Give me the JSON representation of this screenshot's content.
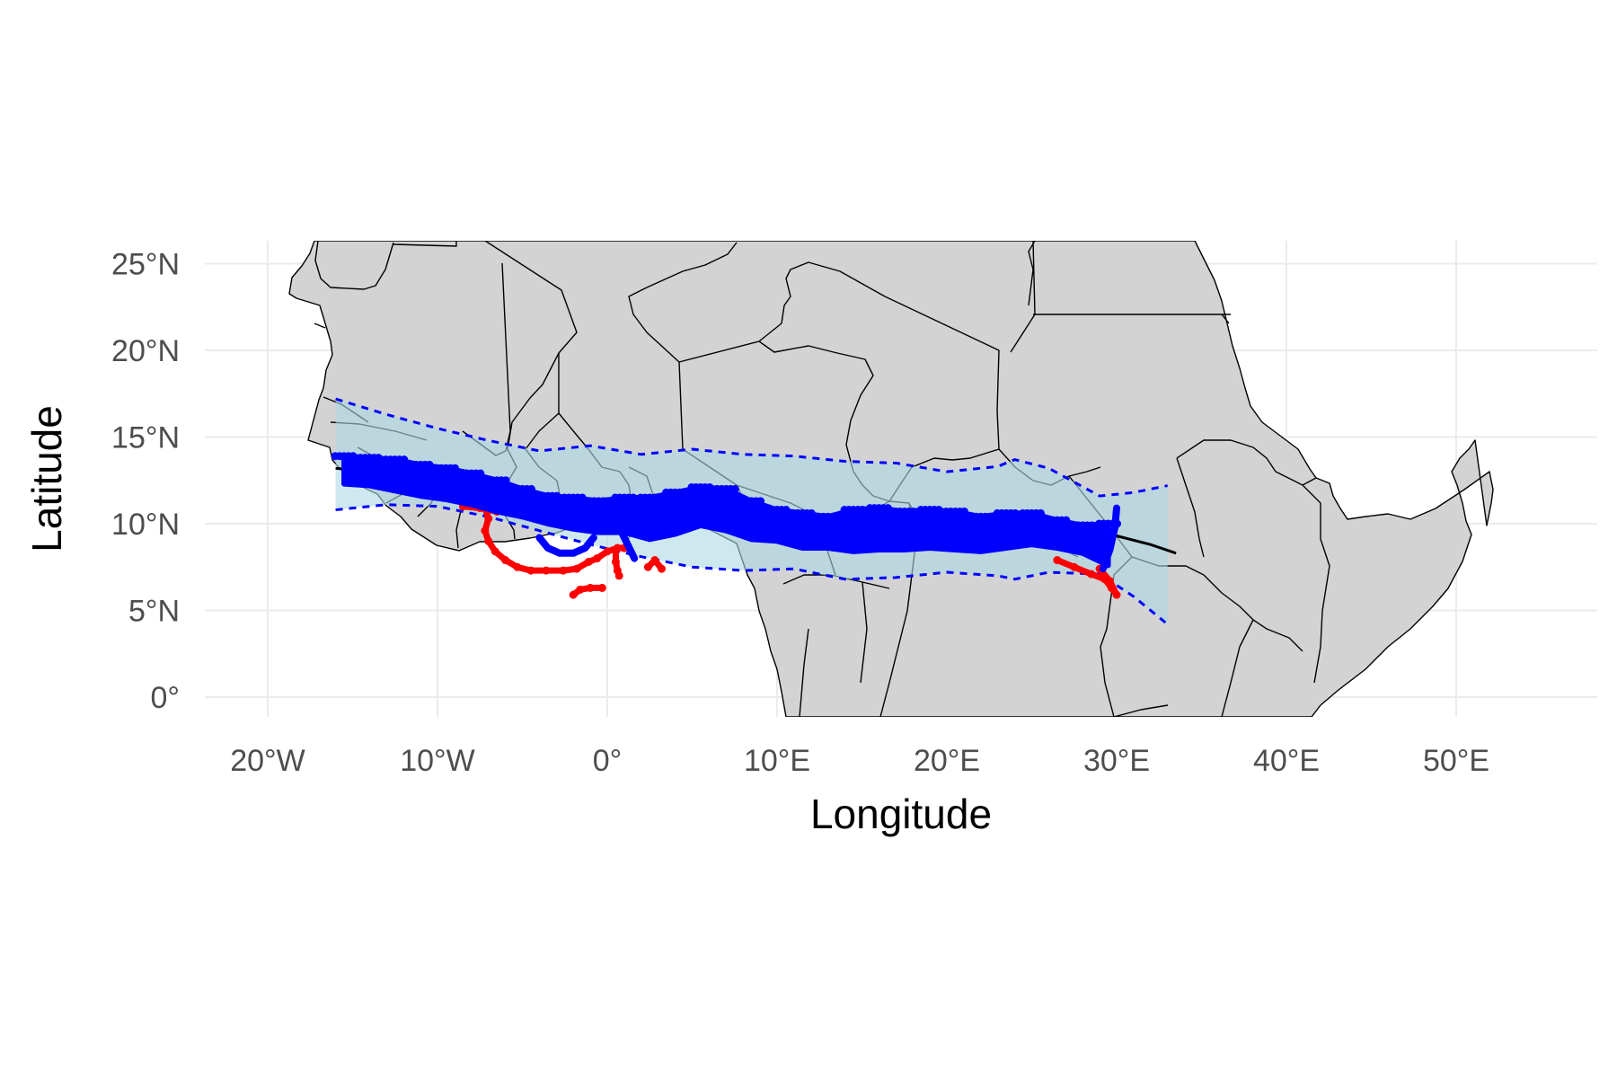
{
  "chart_data": {
    "type": "map",
    "xlabel": "Longitude",
    "ylabel": "Latitude",
    "xlim": [
      -24,
      58
    ],
    "ylim": [
      -1.3,
      26.2
    ],
    "x_ticks": [
      {
        "value": -20,
        "label": "20°W"
      },
      {
        "value": -10,
        "label": "10°W"
      },
      {
        "value": 0,
        "label": "0°"
      },
      {
        "value": 10,
        "label": "10°E"
      },
      {
        "value": 20,
        "label": "20°E"
      },
      {
        "value": 30,
        "label": "30°E"
      },
      {
        "value": 40,
        "label": "40°E"
      },
      {
        "value": 50,
        "label": "50°E"
      }
    ],
    "y_ticks": [
      {
        "value": 0,
        "label": "0°"
      },
      {
        "value": 5,
        "label": "5°N"
      },
      {
        "value": 10,
        "label": "10°N"
      },
      {
        "value": 15,
        "label": "15°N"
      },
      {
        "value": 20,
        "label": "20°N"
      },
      {
        "value": 25,
        "label": "25°N"
      }
    ],
    "grid": true,
    "colors": {
      "land": "#d3d3d3",
      "border": "#000000",
      "band_fill": "#add8e6",
      "band_edge": "#0000ff",
      "points_primary": "#0000ff",
      "points_secondary": "#ff0000",
      "mean_line": "#000000",
      "grid": "#ebebeb"
    },
    "band": {
      "lon": [
        -16,
        -13,
        -10,
        -7,
        -4,
        -1,
        2,
        5,
        8,
        11,
        14,
        17,
        20,
        23,
        24,
        26,
        29,
        31,
        33
      ],
      "upper": [
        17.2,
        16.3,
        15.5,
        14.8,
        14.2,
        14.5,
        14.0,
        14.3,
        14.0,
        13.9,
        13.6,
        13.5,
        13.0,
        13.3,
        13.7,
        13.2,
        11.6,
        11.8,
        12.2
      ],
      "lower": [
        10.8,
        11.1,
        11.0,
        10.4,
        9.6,
        8.8,
        8.1,
        7.5,
        7.3,
        7.4,
        6.8,
        6.9,
        7.2,
        7.0,
        6.8,
        7.2,
        7.1,
        5.8,
        4.2
      ]
    },
    "mean_line": {
      "lon": [
        -16,
        -12,
        -8,
        -4,
        0,
        4,
        8,
        12,
        16,
        20,
        24,
        26,
        28,
        30,
        32,
        33.5
      ],
      "lat": [
        13.2,
        12.8,
        12.1,
        11.3,
        10.8,
        10.6,
        10.3,
        9.9,
        9.6,
        9.6,
        9.6,
        9.9,
        9.6,
        9.3,
        8.8,
        8.3
      ]
    },
    "primary_points": {
      "lon": [
        -15.5,
        -14,
        -12.5,
        -11,
        -9.5,
        -8,
        -6.5,
        -5,
        -3.5,
        -2,
        -0.5,
        1,
        2.5,
        4,
        5.5,
        7,
        8.5,
        10,
        11.5,
        13,
        14.5,
        16,
        17.5,
        19,
        20.5,
        22,
        23.5,
        25,
        26.5,
        28,
        29.5
      ],
      "lat": [
        13.1,
        13.0,
        12.8,
        12.5,
        12.3,
        12.0,
        11.6,
        11.2,
        10.8,
        10.6,
        10.4,
        10.5,
        10.3,
        10.6,
        11.0,
        10.8,
        10.2,
        9.9,
        9.6,
        9.5,
        9.6,
        9.7,
        9.6,
        9.7,
        9.6,
        9.4,
        9.6,
        9.7,
        9.4,
        9.1,
        8.8
      ],
      "spread": [
        0.8,
        0.8,
        0.9,
        0.9,
        0.9,
        0.9,
        0.9,
        0.8,
        0.8,
        0.9,
        0.9,
        1.0,
        1.2,
        1.2,
        1.1,
        1.2,
        1.1,
        0.9,
        1.0,
        0.9,
        1.2,
        1.2,
        1.1,
        1.1,
        1.1,
        1.0,
        1.0,
        0.9,
        0.8,
        0.8,
        1.2
      ]
    },
    "secondary_tracks": [
      {
        "lon": [
          -7.2,
          -7.0,
          -7.2,
          -7.0,
          -6.6,
          -6.0,
          -5.3,
          -4.5,
          -3.6,
          -2.6,
          -1.8,
          -1.1,
          -0.6,
          0.0,
          0.6,
          1.0
        ],
        "lat": [
          10.9,
          10.3,
          9.6,
          9.0,
          8.4,
          7.9,
          7.5,
          7.3,
          7.3,
          7.3,
          7.4,
          7.8,
          8.0,
          8.4,
          8.6,
          8.6
        ]
      },
      {
        "lon": [
          0.5,
          0.5,
          0.6,
          0.7
        ],
        "lat": [
          8.5,
          7.8,
          7.3,
          7.0
        ]
      },
      {
        "lon": [
          -2.0,
          -1.6,
          -1.0,
          -0.3
        ],
        "lat": [
          5.9,
          6.2,
          6.3,
          6.3
        ]
      },
      {
        "lon": [
          2.4,
          2.8,
          3.2
        ],
        "lat": [
          7.5,
          7.9,
          7.4
        ]
      },
      {
        "lon": [
          -8.5,
          -7.5,
          -6.5
        ],
        "lat": [
          11.0,
          10.9,
          10.7
        ]
      },
      {
        "lon": [
          26.5,
          27.5,
          28.5,
          29.3,
          29.7,
          30.0,
          29.6,
          29.0
        ],
        "lat": [
          7.9,
          7.5,
          7.1,
          6.8,
          6.3,
          5.9,
          6.7,
          7.4
        ]
      }
    ],
    "primary_loops": [
      {
        "lon": [
          -4.0,
          -3.5,
          -2.8,
          -2.0,
          -1.3,
          -0.8
        ],
        "lat": [
          9.2,
          8.6,
          8.3,
          8.3,
          8.6,
          9.2
        ]
      },
      {
        "lon": [
          29.2,
          29.6,
          29.9,
          30.0
        ],
        "lat": [
          7.4,
          8.5,
          9.8,
          10.9
        ]
      },
      {
        "lon": [
          0.8,
          1.2,
          1.6
        ],
        "lat": [
          9.6,
          8.8,
          8.0
        ]
      }
    ],
    "land_polygons": [
      {
        "lon": [
          -17.5,
          -17.0,
          -16.5,
          -16.2,
          -16.6,
          -16.3,
          -15.4,
          -15.0,
          -14.6,
          -14.0,
          -13.5,
          -12.2,
          -10.9,
          -9.6,
          -8.5,
          -7.7,
          -7.0,
          -5.7,
          -4.2,
          -3.0,
          -1.9,
          0.0,
          1.5,
          2.2,
          3.0,
          4.5,
          5.4,
          6.0,
          7.0,
          8.5,
          9.0,
          9.5,
          9.7,
          10.0,
          10.0,
          9.7,
          9.2,
          9.6,
          10.2,
          11.0,
          11.7,
          12.1,
          12.3,
          12.1,
          12.2,
          11.5,
          11.9,
          12.6,
          13.4,
          13.3,
          13.9,
          13.9,
          13.2,
          12.6,
          12.5,
          12.3,
          12.0,
          11.2,
          28,
          40,
          41.8,
          42.5,
          42.8,
          43.3,
          44.4,
          45.3,
          46.5,
          47.6,
          48.5,
          49.5,
          50.7,
          51.2,
          51.0,
          49.5,
          47.8,
          46.5,
          45.0,
          43.0,
          41.5,
          38.5,
          37.0,
          36.0,
          35.5,
          34.5,
          33.0,
          30.0,
          27.0,
          22.0,
          17.0,
          10.0,
          4.0,
          -4.0,
          -10.0,
          -13.0,
          -14.5,
          -15.5,
          -16.2,
          -16.8
        ],
        "lat": [
          14.7,
          15.6,
          17.5,
          19.5,
          20.5,
          21.0,
          22.0,
          22.5,
          23.0,
          24.2,
          26.3,
          26.3,
          26.3,
          26.3,
          26.3,
          26.3,
          26.3,
          26.3,
          26.3,
          26.3,
          26.3,
          26.3,
          26.3,
          26.3,
          26.3,
          26.3,
          26.3,
          26.3,
          26.3,
          26.3,
          26.3,
          26.3,
          26.3,
          26.3,
          26.3,
          26.3,
          26.3,
          26.3,
          26.3,
          26.3,
          26.3,
          26.3,
          26.3,
          26.3,
          26.3,
          26.3,
          26.3,
          26.3,
          26.3,
          26.3,
          26.3,
          26.3,
          26.3,
          26.3,
          26.3,
          26.3,
          26.3,
          26.3,
          26.3,
          17.0,
          14.5,
          13.0,
          12.3,
          11.7,
          10.4,
          10.6,
          11.0,
          11.2,
          11.1,
          11.2,
          11.8,
          11.9,
          10.5,
          8.0,
          5.6,
          3.9,
          2.5,
          1.2,
          -1.3,
          -1.3,
          -1.3,
          -1.3,
          -1.3,
          -1.3,
          -1.3,
          -1.3,
          -1.3,
          -1.3,
          -1.3,
          -1.3,
          -1.3,
          -1.3,
          -1.3,
          -1.3,
          -1.3,
          -1.3,
          -1.3,
          -1.3
        ]
      }
    ],
    "coastline_west_africa": {
      "lon": [
        -17.5,
        -16.8,
        -16.6,
        -16.7,
        -15.8,
        -15.0,
        -14.6,
        -14.3,
        -13.5,
        -13.1,
        -12.5,
        -11.5,
        -11.0,
        -10.4,
        -9.3,
        -8.0,
        -7.5,
        -6.5,
        -5.5,
        -4.0,
        -2.8,
        -2.0,
        -1.0,
        0.0,
        1.0,
        1.9,
        2.6,
        3.5,
        4.5,
        5.5,
        6.5,
        7.5,
        8.3,
        8.6,
        9.1,
        9.4,
        9.6,
        9.9,
        10.1,
        10.6,
        11.0,
        11.5,
        11.8,
        12.0,
        12.6,
        13.1,
        13.5,
        14.0,
        14.5,
        15.0,
        15.8,
        16.8,
        17.8,
        18.5,
        19.5,
        21.0,
        22.5,
        24.0,
        25.5,
        27.0,
        28.5,
        29.5,
        30.5,
        31.0,
        31.5,
        32.0,
        32.5,
        33.0,
        33.6,
        34.3,
        35.0,
        36.0,
        37.0,
        38.0,
        39.5,
        41.0,
        42.0,
        43.5,
        45.0,
        46.2,
        47.2,
        48.0,
        48.6,
        49.3,
        50.0,
        50.7,
        51.2
      ],
      "lat": [
        14.7,
        14.4,
        13.8,
        12.5,
        11.8,
        11.0,
        10.6,
        10.0,
        9.5,
        8.8,
        7.8,
        7.2,
        6.7,
        6.1,
        5.3,
        4.6,
        4.4,
        4.3,
        5.0,
        5.2,
        5.0,
        4.9,
        5.3,
        5.7,
        6.0,
        6.3,
        6.4,
        6.4,
        6.2,
        5.5,
        4.4,
        4.3,
        4.5,
        4.0,
        3.9,
        3.6,
        3.2,
        2.6,
        2.1,
        1.5,
        1.0,
        0.4,
        -0.2,
        -1.3,
        -1.3,
        -1.3,
        -1.3,
        -1.3,
        -1.3,
        -1.3,
        -1.3,
        -1.3,
        -1.3,
        -1.3,
        -1.3,
        -1.3,
        -1.3,
        -1.3,
        -1.3,
        -1.3,
        -1.3,
        -1.3,
        -1.3,
        -1.3,
        -1.3,
        -1.3,
        -1.3,
        -1.3,
        -1.3,
        -1.3,
        -1.3,
        -1.3,
        -1.3,
        -1.3,
        -1.3,
        -1.3,
        -1.3,
        -1.3,
        -1.3,
        -1.3,
        -1.3,
        -1.3,
        -1.3,
        -1.3,
        -1.3,
        -1.3,
        -1.3
      ]
    }
  }
}
